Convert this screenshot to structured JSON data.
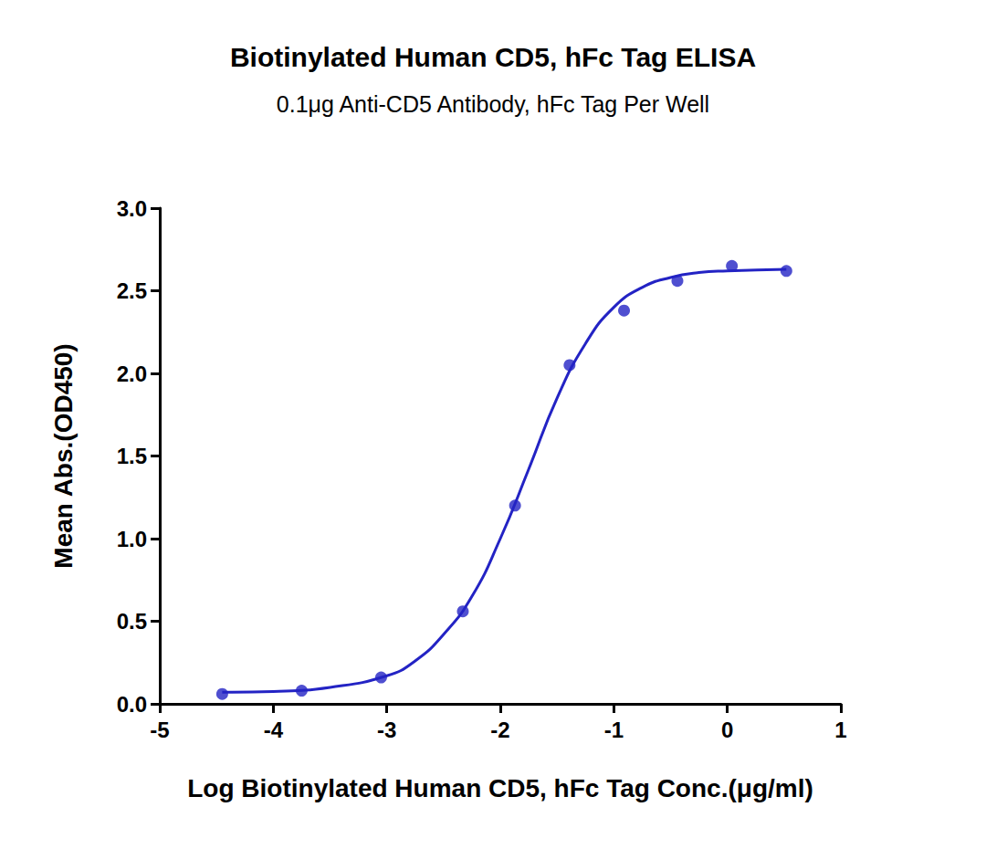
{
  "chart_data": {
    "type": "scatter",
    "title": "Biotinylated Human CD5, hFc Tag ELISA",
    "subtitle": "0.1μg Anti-CD5 Antibody, hFc Tag Per Well",
    "x_label": "Log Biotinylated Human CD5, hFc Tag Conc.(μg/ml)",
    "y_label": "Mean Abs.(OD450)",
    "xlim": [
      -5,
      1
    ],
    "xticks": [
      -5,
      -4,
      -3,
      -2,
      -1,
      0,
      1
    ],
    "ylim": [
      0,
      3
    ],
    "yticks": [
      {
        "value": 0,
        "label": "0.0"
      },
      0.5,
      {
        "value": 1,
        "label": "1.0"
      },
      1.5,
      {
        "value": 2,
        "label": "2.0"
      },
      2.5,
      {
        "value": 3,
        "label": "3.0"
      }
    ],
    "grid": false,
    "series": [
      {
        "type": "scatter",
        "marker": "circle",
        "color": "#2323c4",
        "x": [
          -4.45,
          -3.75,
          -3.05,
          -2.33,
          -1.87,
          -1.39,
          -0.91,
          -0.44,
          0.04,
          0.52
        ],
        "values": [
          0.06,
          0.08,
          0.16,
          0.56,
          1.2,
          2.05,
          2.38,
          2.56,
          2.65,
          2.62
        ]
      },
      {
        "type": "line",
        "marker": "none",
        "line_style": "solid",
        "color": "#2323c4",
        "x": [
          -4.45,
          -4.0,
          -3.5,
          -3.0,
          -2.75,
          -2.5,
          -2.25,
          -2.0,
          -1.75,
          -1.5,
          -1.25,
          -1.0,
          -0.75,
          -0.5,
          -0.25,
          0.0,
          0.52
        ],
        "values": [
          0.07,
          0.075,
          0.1,
          0.17,
          0.26,
          0.42,
          0.65,
          1.0,
          1.42,
          1.85,
          2.18,
          2.4,
          2.52,
          2.58,
          2.61,
          2.62,
          2.63
        ]
      }
    ]
  }
}
